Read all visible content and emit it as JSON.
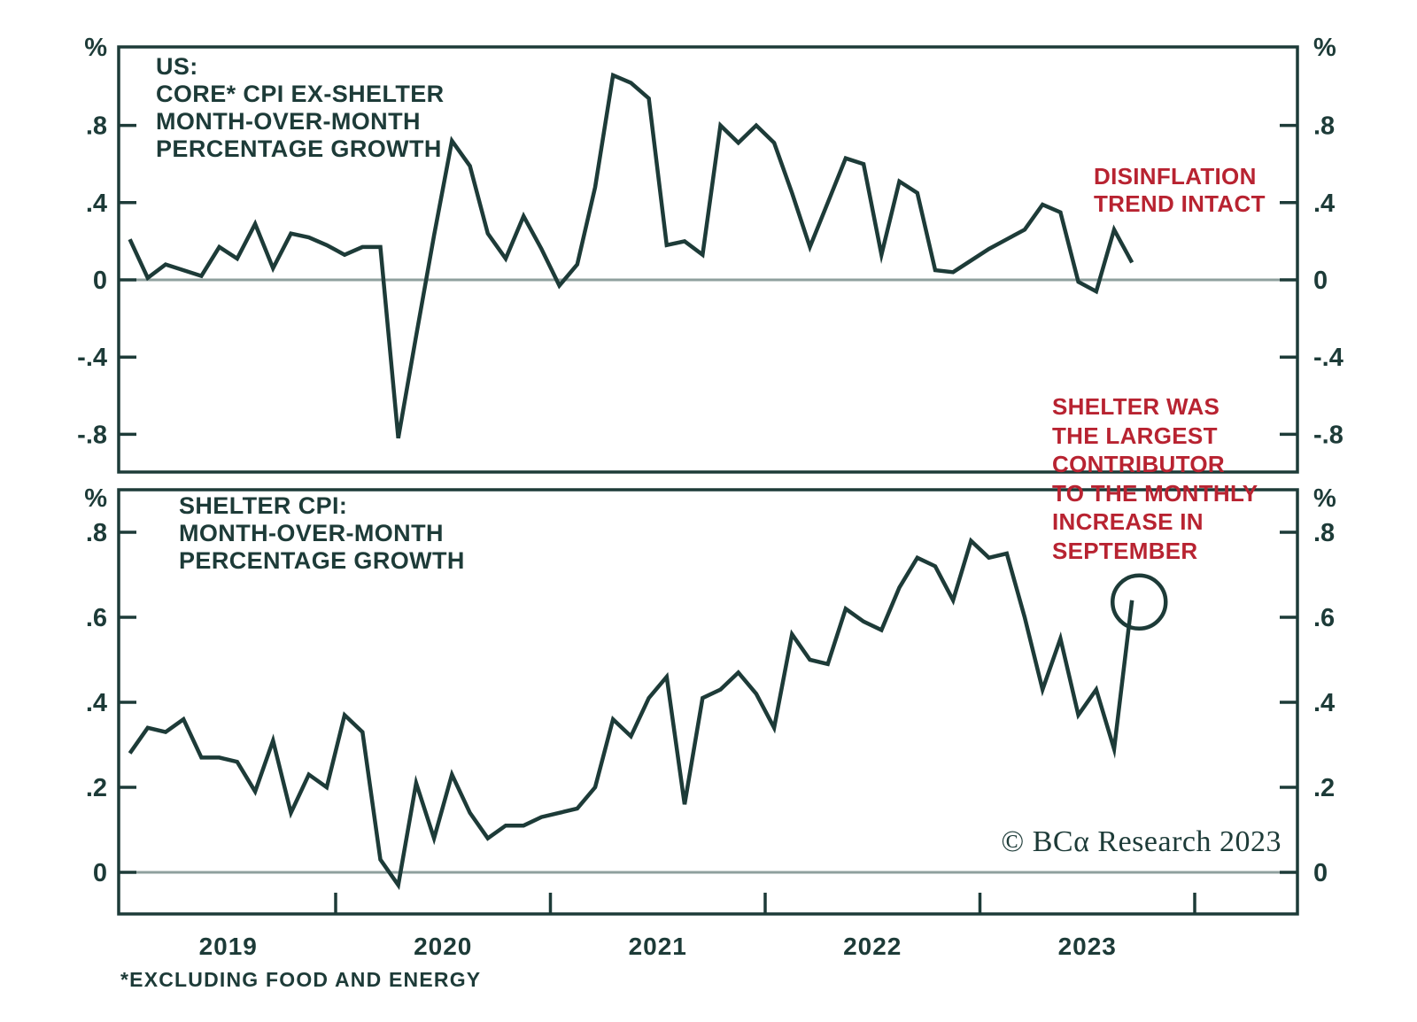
{
  "colors": {
    "line": "#1d3b38",
    "accent_red": "#b82331",
    "zero_line": "#8fa09e",
    "background": "#ffffff"
  },
  "top_panel": {
    "title_lines": [
      "US:",
      "CORE* CPI EX-SHELTER",
      "MONTH-OVER-MONTH",
      "PERCENTAGE GROWTH"
    ],
    "annotation_lines": [
      "DISINFLATION",
      "TREND INTACT"
    ],
    "unit": "%"
  },
  "bottom_panel": {
    "title_lines": [
      "SHELTER CPI:",
      "MONTH-OVER-MONTH",
      "PERCENTAGE GROWTH"
    ],
    "annotation_lines": [
      "SHELTER WAS",
      "THE LARGEST",
      "CONTRIBUTOR",
      "TO THE MONTHLY",
      "INCREASE IN",
      "SEPTEMBER"
    ],
    "unit": "%"
  },
  "x_axis": {
    "year_labels": [
      "2019",
      "2020",
      "2021",
      "2022",
      "2023"
    ]
  },
  "footnote": "*EXCLUDING FOOD AND ENERGY",
  "watermark": "© BCα Research 2023",
  "chart_data": [
    {
      "type": "line",
      "title": "US: CORE* CPI EX-SHELTER MONTH-OVER-MONTH PERCENTAGE GROWTH",
      "series_name": "Core CPI ex-shelter MoM % growth",
      "x_start": "2019-01",
      "x_end": "2023-09",
      "x_frequency": "monthly",
      "x_tick_labels": [
        "2019",
        "2020",
        "2021",
        "2022",
        "2023"
      ],
      "unit": "%",
      "ylim": [
        -1.0,
        1.21
      ],
      "yticks": [
        0.8,
        0.4,
        0,
        -0.4,
        -0.8
      ],
      "ytick_labels": [
        ".8",
        ".4",
        "0",
        "-.4",
        "-.8"
      ],
      "zero_line": true,
      "grid": false,
      "axis_sides": "both",
      "annotation": "DISINFLATION TREND INTACT",
      "values": [
        0.21,
        0.01,
        0.08,
        0.05,
        0.02,
        0.17,
        0.11,
        0.29,
        0.06,
        0.24,
        0.22,
        0.18,
        0.13,
        0.17,
        0.17,
        -0.82,
        -0.29,
        0.23,
        0.72,
        0.59,
        0.24,
        0.11,
        0.33,
        0.16,
        -0.03,
        0.08,
        0.48,
        1.06,
        1.02,
        0.94,
        0.18,
        0.2,
        0.13,
        0.8,
        0.71,
        0.8,
        0.71,
        0.45,
        0.17,
        0.4,
        0.63,
        0.6,
        0.13,
        0.51,
        0.45,
        0.05,
        0.04,
        0.1,
        0.16,
        0.21,
        0.26,
        0.39,
        0.35,
        -0.01,
        -0.06,
        0.26,
        0.09
      ]
    },
    {
      "type": "line",
      "title": "SHELTER CPI: MONTH-OVER-MONTH PERCENTAGE GROWTH",
      "series_name": "Shelter CPI MoM % growth",
      "x_start": "2019-01",
      "x_end": "2023-09",
      "x_frequency": "monthly",
      "x_tick_labels": [
        "2019",
        "2020",
        "2021",
        "2022",
        "2023"
      ],
      "unit": "%",
      "ylim": [
        -0.1,
        0.9
      ],
      "yticks": [
        0.8,
        0.6,
        0.4,
        0.2,
        0
      ],
      "ytick_labels": [
        ".8",
        ".6",
        ".4",
        ".2",
        "0"
      ],
      "zero_line": true,
      "grid": false,
      "axis_sides": "both",
      "annotation": "SHELTER WAS THE LARGEST CONTRIBUTOR TO THE MONTHLY INCREASE IN SEPTEMBER",
      "circled_point": {
        "month": "2023-09",
        "value": 0.64
      },
      "footnote": "*EXCLUDING FOOD AND ENERGY",
      "values": [
        0.28,
        0.34,
        0.33,
        0.36,
        0.27,
        0.27,
        0.26,
        0.19,
        0.31,
        0.14,
        0.23,
        0.2,
        0.37,
        0.33,
        0.03,
        -0.03,
        0.21,
        0.08,
        0.23,
        0.14,
        0.08,
        0.11,
        0.11,
        0.13,
        0.14,
        0.15,
        0.2,
        0.36,
        0.32,
        0.41,
        0.46,
        0.16,
        0.41,
        0.43,
        0.47,
        0.42,
        0.34,
        0.56,
        0.5,
        0.49,
        0.62,
        0.59,
        0.57,
        0.67,
        0.74,
        0.72,
        0.64,
        0.78,
        0.74,
        0.75,
        0.6,
        0.43,
        0.55,
        0.37,
        0.43,
        0.29,
        0.64
      ]
    }
  ]
}
